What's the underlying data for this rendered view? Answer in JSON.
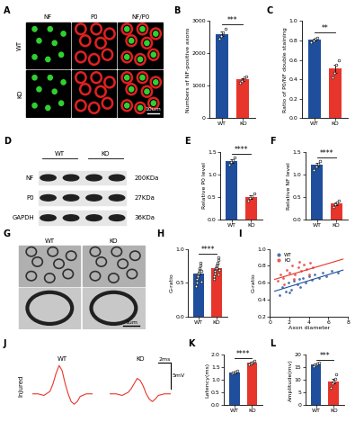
{
  "chart_data": [
    {
      "type": "image",
      "title": "A",
      "columns": [
        "NF",
        "P0",
        "NF/P0"
      ],
      "rows": [
        "WT",
        "KO"
      ],
      "scale_bar": "10um"
    },
    {
      "type": "bar",
      "title": "B",
      "categories": [
        "WT",
        "KO"
      ],
      "values": [
        2600,
        1200
      ],
      "errors": [
        70,
        45
      ],
      "points": [
        [
          2450,
          2550,
          2650,
          2750
        ],
        [
          1100,
          1150,
          1250,
          1300
        ]
      ],
      "colors": [
        "#1f4e9c",
        "#e8352b"
      ],
      "ylabel": "Numbers of NF-positive axons",
      "ylim": [
        0,
        3000
      ],
      "yticks": [
        0,
        1000,
        2000,
        3000
      ],
      "annotation": "***"
    },
    {
      "type": "bar",
      "title": "C",
      "categories": [
        "WT",
        "KO"
      ],
      "values": [
        0.81,
        0.51
      ],
      "errors": [
        0.01,
        0.04
      ],
      "points": [
        [
          0.78,
          0.8,
          0.82,
          0.83
        ],
        [
          0.42,
          0.47,
          0.55,
          0.6
        ]
      ],
      "colors": [
        "#1f4e9c",
        "#e8352b"
      ],
      "ylabel": "Ratio of P0/NF double staining",
      "ylim": [
        0.0,
        1.0
      ],
      "yticks": [
        0.0,
        0.2,
        0.4,
        0.6,
        0.8,
        1.0
      ],
      "annotation": "**"
    },
    {
      "type": "blot",
      "title": "D",
      "groups": [
        "WT",
        "KO"
      ],
      "proteins": [
        "NF",
        "P0",
        "GAPDH"
      ],
      "sizes": [
        "200KDa",
        "27KDa",
        "36KDa"
      ]
    },
    {
      "type": "bar",
      "title": "E",
      "categories": [
        "WT",
        "KO"
      ],
      "values": [
        1.3,
        0.5
      ],
      "errors": [
        0.04,
        0.04
      ],
      "points": [
        [
          1.22,
          1.28,
          1.32,
          1.38
        ],
        [
          0.42,
          0.48,
          0.52,
          0.58
        ]
      ],
      "colors": [
        "#1f4e9c",
        "#e8352b"
      ],
      "ylabel": "Relative P0 level",
      "ylim": [
        0.0,
        1.5
      ],
      "yticks": [
        0.0,
        0.5,
        1.0,
        1.5
      ],
      "annotation": "****"
    },
    {
      "type": "bar",
      "title": "F",
      "categories": [
        "WT",
        "KO"
      ],
      "values": [
        1.21,
        0.35
      ],
      "errors": [
        0.04,
        0.03
      ],
      "points": [
        [
          1.1,
          1.18,
          1.24,
          1.3
        ],
        [
          0.28,
          0.33,
          0.37,
          0.42
        ]
      ],
      "colors": [
        "#1f4e9c",
        "#e8352b"
      ],
      "ylabel": "Relative NF level",
      "ylim": [
        0.0,
        1.5
      ],
      "yticks": [
        0.0,
        0.5,
        1.0,
        1.5
      ],
      "annotation": "****"
    },
    {
      "type": "image",
      "title": "G",
      "columns": [
        "WT",
        "KO"
      ],
      "scale_bar": "1um"
    },
    {
      "type": "bar",
      "title": "H",
      "categories": [
        "WT",
        "KO"
      ],
      "values": [
        0.63,
        0.71
      ],
      "errors": [
        0.01,
        0.01
      ],
      "points": [
        [
          0.45,
          0.5,
          0.55,
          0.58,
          0.6,
          0.62,
          0.63,
          0.65,
          0.67,
          0.7,
          0.72,
          0.75,
          0.8,
          0.52,
          0.68
        ],
        [
          0.55,
          0.6,
          0.64,
          0.67,
          0.7,
          0.71,
          0.72,
          0.74,
          0.76,
          0.78,
          0.8,
          0.83,
          0.88,
          0.62,
          0.69
        ]
      ],
      "colors": [
        "#1f4e9c",
        "#e8352b"
      ],
      "ylabel": "G-ratio",
      "ylim": [
        0.0,
        1.0
      ],
      "yticks": [
        0.0,
        0.5,
        1.0
      ],
      "annotation": "****"
    },
    {
      "type": "scatter",
      "title": "I",
      "xlabel": "Axon diameter",
      "ylabel": "G-ratio",
      "xlim": [
        0,
        8
      ],
      "xticks": [
        0,
        2,
        4,
        6,
        8
      ],
      "ylim": [
        0.2,
        1.0
      ],
      "yticks": [
        0.2,
        0.4,
        0.6,
        0.8,
        1.0
      ],
      "legend": "upper left",
      "series": [
        {
          "name": "WT",
          "color": "#1f4e9c",
          "x": [
            1.0,
            1.3,
            1.6,
            1.9,
            2.2,
            2.5,
            2.8,
            3.1,
            3.4,
            3.7,
            4.0,
            4.3,
            4.6,
            5.0,
            5.4,
            5.8,
            6.3,
            7.0,
            2.0,
            3.0
          ],
          "values": [
            0.45,
            0.55,
            0.5,
            0.6,
            0.52,
            0.62,
            0.58,
            0.55,
            0.66,
            0.6,
            0.68,
            0.63,
            0.7,
            0.66,
            0.72,
            0.68,
            0.74,
            0.72,
            0.48,
            0.64
          ],
          "fit_x": [
            0.5,
            7.5
          ],
          "fit_y": [
            0.5,
            0.75
          ]
        },
        {
          "name": "KO",
          "color": "#e8352b",
          "x": [
            0.8,
            1.1,
            1.4,
            1.7,
            2.0,
            2.3,
            2.6,
            2.9,
            3.2,
            3.5,
            3.8,
            4.1,
            4.4,
            1.5,
            2.5,
            3.0,
            4.0
          ],
          "values": [
            0.62,
            0.7,
            0.66,
            0.75,
            0.72,
            0.8,
            0.7,
            0.78,
            0.74,
            0.82,
            0.76,
            0.84,
            0.78,
            0.58,
            0.65,
            0.85,
            0.7
          ],
          "fit_x": [
            0.5,
            7.5
          ],
          "fit_y": [
            0.64,
            0.88
          ]
        }
      ]
    },
    {
      "type": "line",
      "title": "J",
      "row_label": "Injured",
      "tick_labels": false,
      "xlim": [
        0,
        10
      ],
      "ylim": [
        -3,
        6
      ],
      "scale_x": 2,
      "scale_x_label": "2ms",
      "scale_y": 5,
      "scale_y_label": "5mV",
      "series": [
        {
          "name": "WT",
          "color": "#e8352b",
          "x": [
            0,
            1,
            2,
            3,
            3.5,
            4,
            4.5,
            5,
            5.5,
            6,
            6.5,
            7,
            7.5,
            8,
            9,
            10
          ],
          "values": [
            0,
            0,
            -0.3,
            0.5,
            2,
            4,
            5.5,
            4.5,
            2,
            0,
            -1.5,
            -2,
            -1.5,
            -0.5,
            0,
            0
          ]
        },
        {
          "name": "KO",
          "color": "#e8352b",
          "x": [
            0,
            1,
            2,
            3,
            3.5,
            4,
            4.5,
            5,
            5.5,
            6,
            6.5,
            7,
            7.5,
            8,
            9,
            10
          ],
          "values": [
            0,
            0,
            -0.3,
            0.3,
            1,
            2,
            3,
            2.6,
            1.5,
            0,
            -1,
            -1.5,
            -1,
            -0.3,
            0,
            0
          ]
        }
      ]
    },
    {
      "type": "bar",
      "title": "K",
      "categories": [
        "WT",
        "KO"
      ],
      "values": [
        1.3,
        1.68
      ],
      "errors": [
        0.03,
        0.03
      ],
      "points": [
        [
          1.25,
          1.28,
          1.3,
          1.33,
          1.35
        ],
        [
          1.6,
          1.65,
          1.68,
          1.72,
          1.75
        ]
      ],
      "colors": [
        "#1f4e9c",
        "#e8352b"
      ],
      "ylabel": "Latency(ms)",
      "ylim": [
        0.0,
        2.0
      ],
      "yticks": [
        0.0,
        0.5,
        1.0,
        1.5,
        2.0
      ],
      "annotation": "****"
    },
    {
      "type": "bar",
      "title": "L",
      "categories": [
        "WT",
        "KO"
      ],
      "values": [
        16.2,
        9.5
      ],
      "errors": [
        0.3,
        0.9
      ],
      "points": [
        [
          15.5,
          16,
          16.2,
          16.5,
          16.8
        ],
        [
          7,
          8.5,
          9.5,
          10.5,
          12
        ]
      ],
      "colors": [
        "#1f4e9c",
        "#e8352b"
      ],
      "ylabel": "Amplitude(mv)",
      "ylim": [
        0,
        20
      ],
      "yticks": [
        0,
        5,
        10,
        15,
        20
      ],
      "annotation": "***"
    }
  ]
}
